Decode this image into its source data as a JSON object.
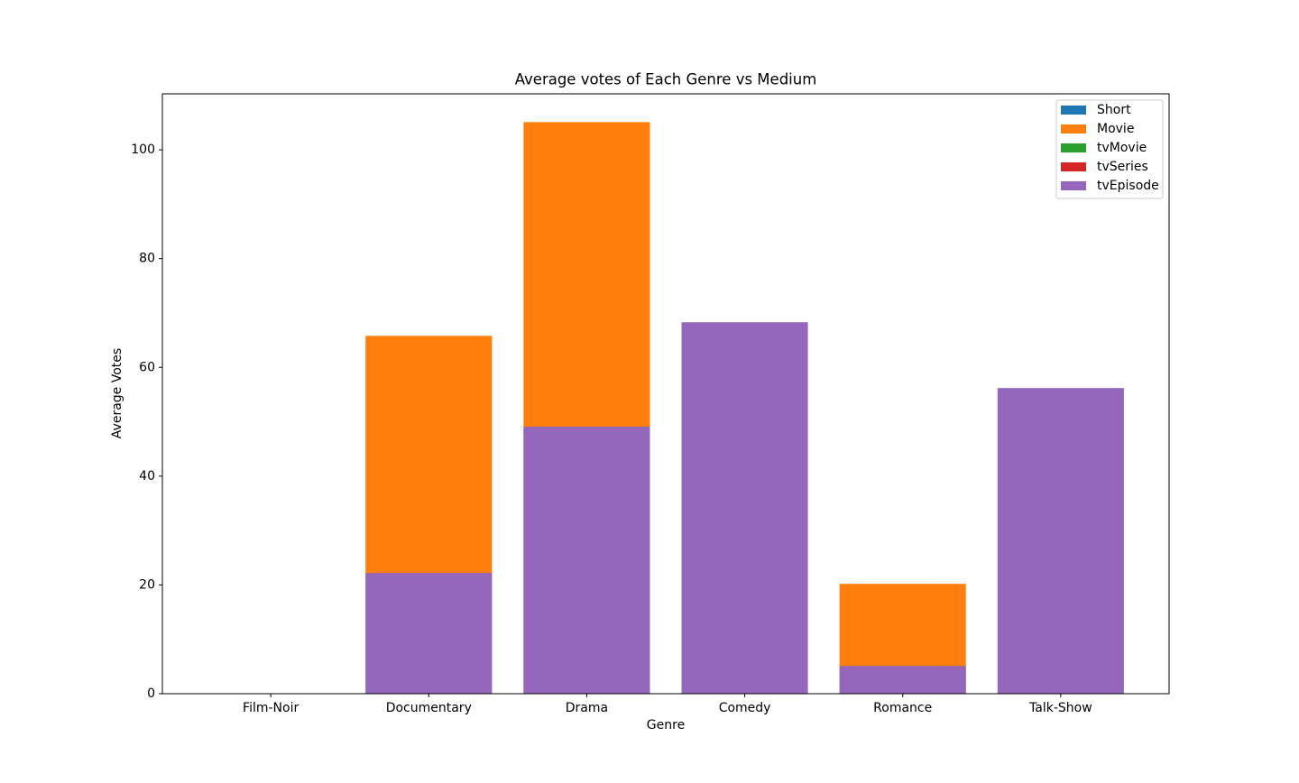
{
  "chart_data": {
    "type": "bar",
    "title": "Average votes of Each Genre vs Medium",
    "x_label": "Genre",
    "y_label": "Average Votes",
    "categories": [
      "Film-Noir",
      "Documentary",
      "Drama",
      "Comedy",
      "Romance",
      "Talk-Show"
    ],
    "series": [
      {
        "name": "Short",
        "color": "#1f77b4",
        "values": [
          0,
          0,
          0,
          0,
          0,
          0
        ]
      },
      {
        "name": "Movie",
        "color": "#ff7f0e",
        "values": [
          0,
          65.8,
          105.1,
          0,
          20.2,
          0
        ]
      },
      {
        "name": "tvMovie",
        "color": "#2ca02c",
        "values": [
          0,
          0,
          0,
          0,
          0,
          0
        ]
      },
      {
        "name": "tvSeries",
        "color": "#d62728",
        "values": [
          0,
          0,
          0,
          0,
          0,
          0
        ]
      },
      {
        "name": "tvEpisode",
        "color": "#9467bd",
        "values": [
          0,
          22.2,
          49.1,
          68.3,
          5.1,
          56.2
        ]
      }
    ],
    "ylim": [
      0,
      110.3
    ],
    "yticks": [
      0,
      20,
      40,
      60,
      80,
      100
    ],
    "grid": false,
    "legend": "upper right"
  }
}
